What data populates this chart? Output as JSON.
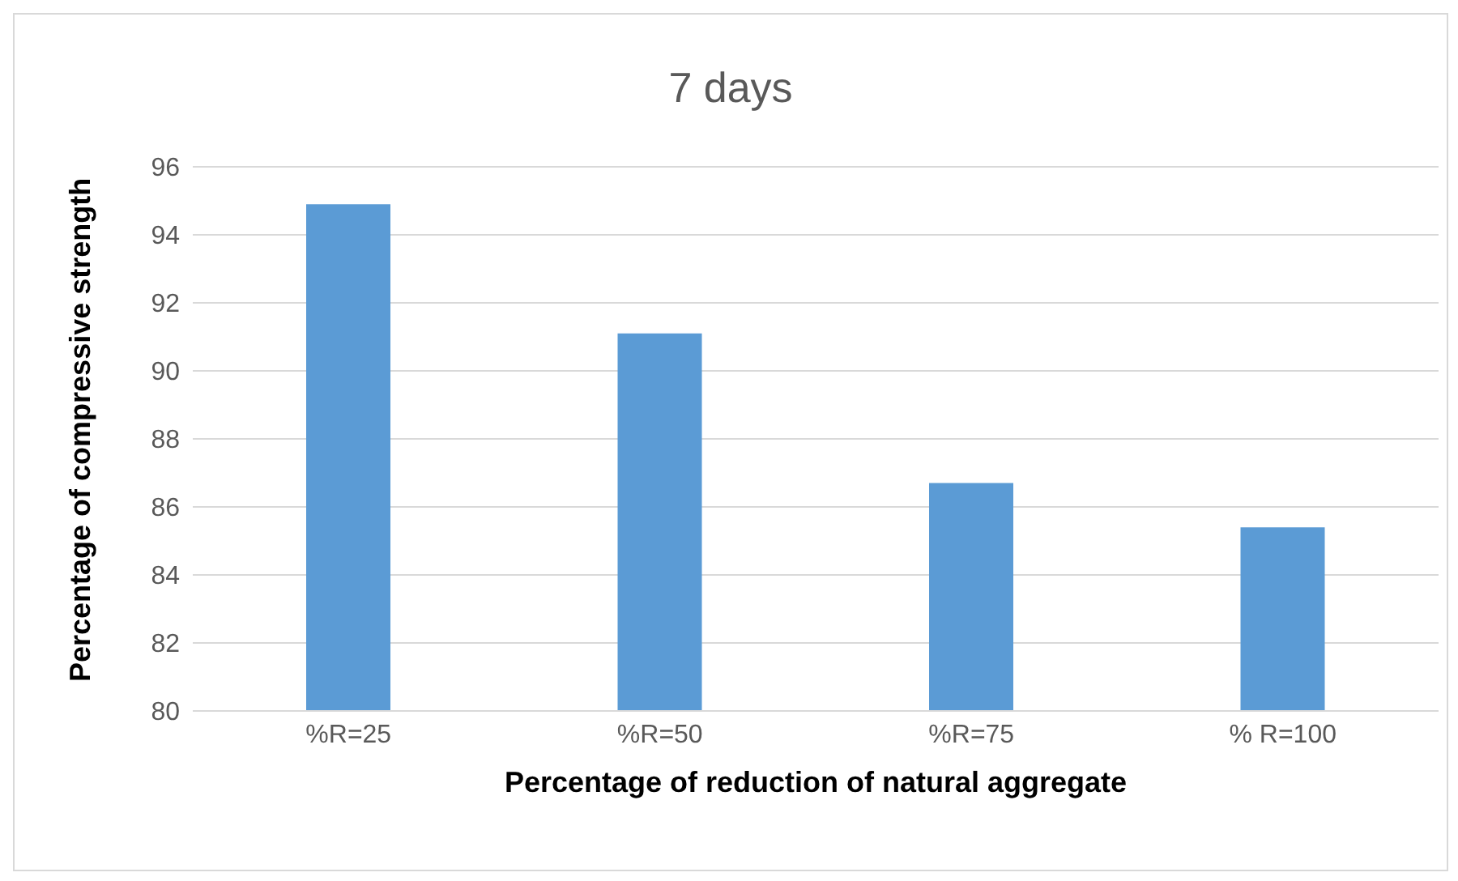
{
  "chart_data": {
    "type": "bar",
    "title": "7 days",
    "xlabel": "Percentage of reduction of natural aggregate",
    "ylabel": "Percentage of compressive strength",
    "categories": [
      "%R=25",
      "%R=50",
      "%R=75",
      "% R=100"
    ],
    "values": [
      94.9,
      91.1,
      86.7,
      85.4
    ],
    "color": "#5b9bd5",
    "ylim": [
      80,
      96
    ],
    "yticks": [
      80,
      82,
      84,
      86,
      88,
      90,
      92,
      94,
      96
    ],
    "grid": "y"
  }
}
